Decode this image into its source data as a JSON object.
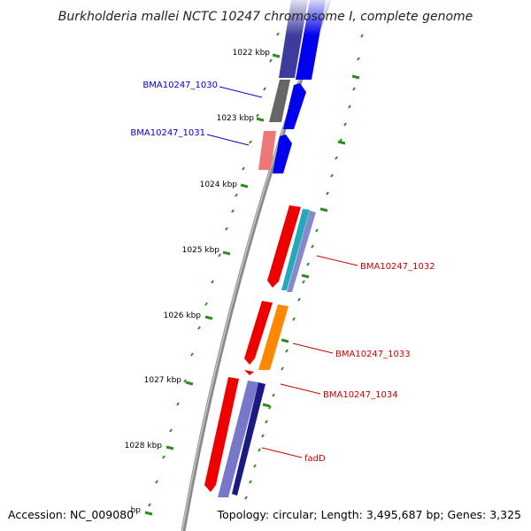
{
  "title": "Burkholderia mallei NCTC 10247 chromosome I, complete genome",
  "footer": {
    "accession": "Accession: NC_009080",
    "topology": "Topology: circular; Length: 3,495,687 bp; Genes: 3,325"
  },
  "scale": {
    "ticks": [
      "1022 kbp",
      "1023 kbp",
      "1024 kbp",
      "1025 kbp",
      "1026 kbp",
      "1027 kbp",
      "1028 kbp"
    ],
    "faded_tick": "bp"
  },
  "gene_labels": [
    {
      "key": "bma1030",
      "text": "BMA10247_1030",
      "color": "#0000cc"
    },
    {
      "key": "bma1031",
      "text": "BMA10247_1031",
      "color": "#0000cc"
    },
    {
      "key": "bma1032",
      "text": "BMA10247_1032",
      "color": "#cc0000"
    },
    {
      "key": "bma1033",
      "text": "BMA10247_1033",
      "color": "#cc0000"
    },
    {
      "key": "bma1034",
      "text": "BMA10247_1034",
      "color": "#cc0000"
    },
    {
      "key": "fadd",
      "text": "fadD",
      "color": "#cc0000"
    }
  ],
  "colors": {
    "backbone": "#8a8a8a",
    "tick_green": "#2e8b20",
    "red_gene": "#ee0000",
    "blue_gene": "#0000ee",
    "navy_gene": "#1a1a80",
    "gray_gene": "#666666",
    "pink_gene": "#ee7777",
    "orange_gene": "#ff8800",
    "teal_gene": "#22aabb",
    "lavender_gene": "#8888cc",
    "indigo_gene": "#4444aa"
  }
}
